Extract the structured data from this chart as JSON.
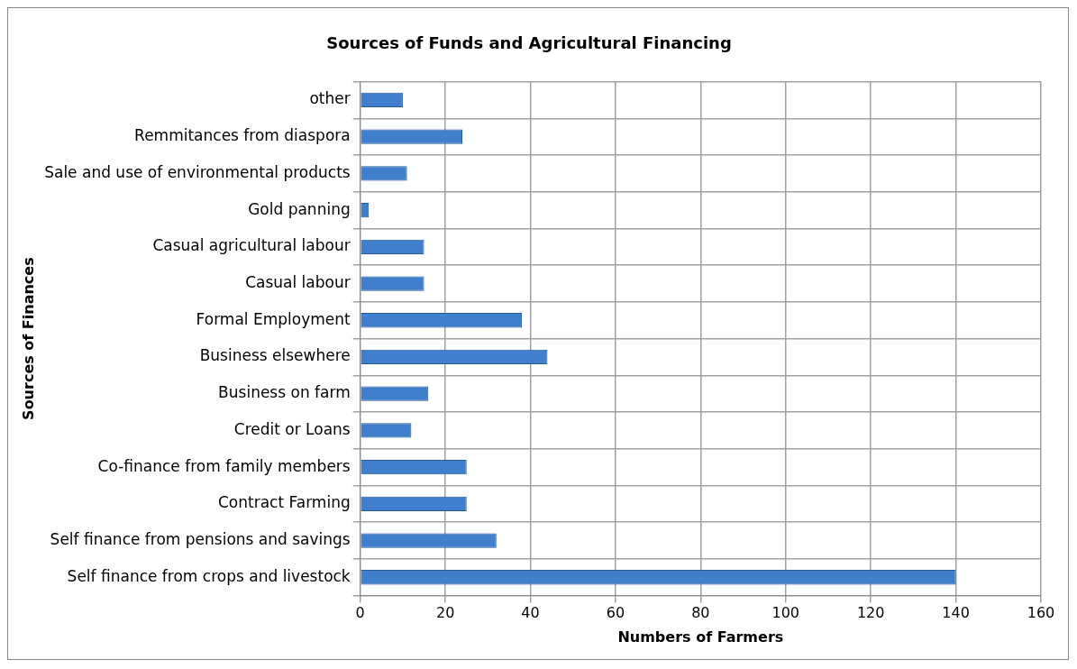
{
  "chart_data": {
    "type": "bar",
    "orientation": "horizontal",
    "title": "Sources of Funds and Agricultural Financing",
    "xlabel": "Numbers of Farmers",
    "ylabel": "Sources of Finances",
    "categories": [
      "other",
      "Remmitances from diaspora",
      "Sale and use of environmental products",
      "Gold panning",
      "Casual agricultural labour",
      "Casual labour",
      "Formal Employment",
      "Business elsewhere",
      "Business on farm",
      "Credit or Loans",
      "Co-finance from family members",
      "Contract Farming",
      "Self finance from pensions and savings",
      "Self finance from crops and livestock"
    ],
    "values": [
      10,
      24,
      11,
      2,
      15,
      15,
      38,
      44,
      16,
      12,
      25,
      25,
      32,
      140
    ],
    "color": "#3f7fcc",
    "xlim": [
      0,
      160
    ],
    "xticks": [
      0,
      20,
      40,
      60,
      80,
      100,
      120,
      140,
      160
    ],
    "grid": true,
    "legend": false
  }
}
